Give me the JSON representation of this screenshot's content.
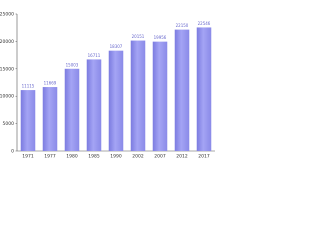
{
  "chart_data": {
    "type": "bar",
    "categories": [
      "1971",
      "1977",
      "1980",
      "1985",
      "1990",
      "2002",
      "2007",
      "2012",
      "2017"
    ],
    "values": [
      11115,
      11669,
      15003,
      16711,
      18307,
      20151,
      19956,
      22150,
      22546
    ],
    "color": "#a4a4f4",
    "ylim": [
      0,
      25000
    ],
    "yticks": [
      0,
      5000,
      10000,
      15000,
      20000,
      25000
    ],
    "grid": false
  }
}
